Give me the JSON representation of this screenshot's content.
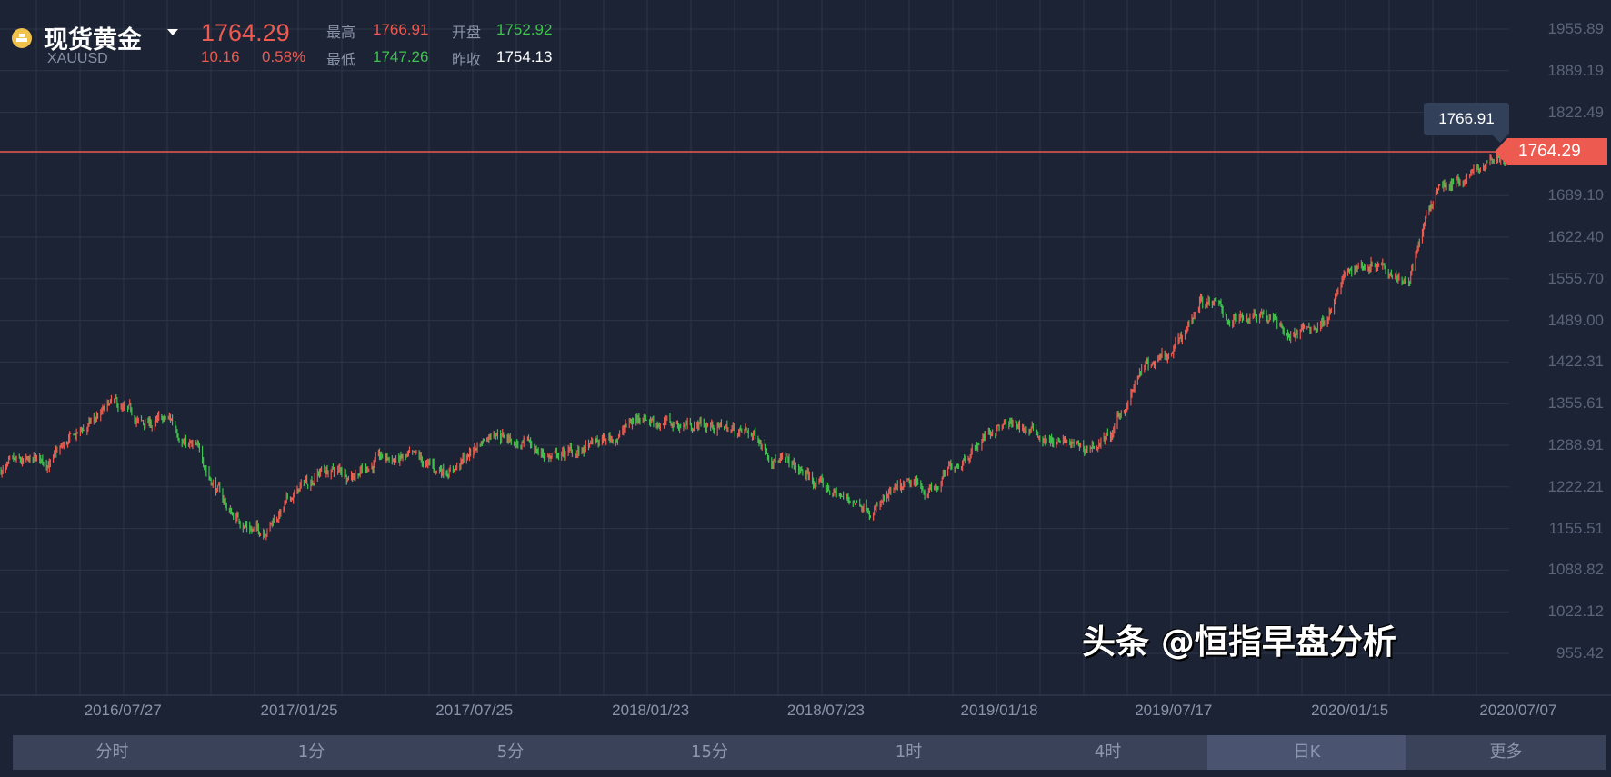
{
  "header": {
    "name": "现货黄金",
    "symbol": "XAUUSD",
    "price": "1764.29",
    "change": "10.16",
    "change_pct": "0.58%",
    "high_label": "最高",
    "high": "1766.91",
    "open_label": "开盘",
    "open": "1752.92",
    "low_label": "最低",
    "low": "1747.26",
    "prev_close_label": "昨收",
    "prev_close": "1754.13"
  },
  "chart_data": {
    "type": "candlestick",
    "y_ticks": [
      "1955.89",
      "1889.19",
      "1822.49",
      "1689.10",
      "1622.40",
      "1555.70",
      "1489.00",
      "1422.31",
      "1355.61",
      "1288.91",
      "1222.21",
      "1155.51",
      "1088.82",
      "1022.12",
      "955.42"
    ],
    "ylim": [
      955.42,
      1955.89
    ],
    "x_ticks": [
      "2016/07/27",
      "2017/01/25",
      "2017/07/25",
      "2018/01/23",
      "2018/07/23",
      "2019/01/18",
      "2019/07/17",
      "2020/01/15",
      "2020/07/07"
    ],
    "approx_monthly_close": {
      "months": [
        "2016-04",
        "2016-05",
        "2016-06",
        "2016-07",
        "2016-08",
        "2016-09",
        "2016-10",
        "2016-11",
        "2016-12",
        "2017-01",
        "2017-02",
        "2017-03",
        "2017-04",
        "2017-05",
        "2017-06",
        "2017-07",
        "2017-08",
        "2017-09",
        "2017-10",
        "2017-11",
        "2017-12",
        "2018-01",
        "2018-02",
        "2018-03",
        "2018-04",
        "2018-05",
        "2018-06",
        "2018-07",
        "2018-08",
        "2018-09",
        "2018-10",
        "2018-11",
        "2018-12",
        "2019-01",
        "2019-02",
        "2019-03",
        "2019-04",
        "2019-05",
        "2019-06",
        "2019-07",
        "2019-08",
        "2019-09",
        "2019-10",
        "2019-11",
        "2019-12",
        "2020-01",
        "2020-02",
        "2020-03",
        "2020-04",
        "2020-05",
        "2020-06",
        "2020-07"
      ],
      "values": [
        1250,
        1265,
        1310,
        1350,
        1320,
        1325,
        1270,
        1180,
        1150,
        1200,
        1250,
        1245,
        1265,
        1265,
        1245,
        1265,
        1320,
        1285,
        1270,
        1280,
        1300,
        1340,
        1320,
        1325,
        1315,
        1300,
        1255,
        1225,
        1200,
        1195,
        1215,
        1220,
        1280,
        1320,
        1315,
        1295,
        1280,
        1305,
        1410,
        1425,
        1525,
        1490,
        1510,
        1465,
        1480,
        1570,
        1590,
        1560,
        1700,
        1720,
        1750,
        1764
      ]
    },
    "last_price": "1764.29",
    "crosshair_value": "1766.91",
    "up_color": "#ec5a50",
    "down_color": "#3fc24f"
  },
  "tabs": [
    "分时",
    "1分",
    "5分",
    "15分",
    "1时",
    "4时",
    "日K",
    "更多"
  ],
  "selected_tab": "日K",
  "watermark": "头条 @恒指早盘分析"
}
